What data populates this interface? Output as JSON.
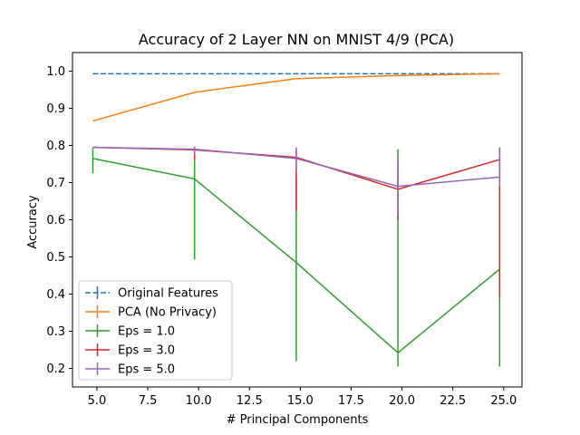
{
  "chart_data": {
    "type": "line",
    "title": "Accuracy of 2 Layer NN on MNIST 4/9 (PCA)",
    "xlabel": "# Principal Components",
    "ylabel": "Accuracy",
    "xlim": [
      3.8,
      25.9
    ],
    "ylim": [
      0.15,
      1.05
    ],
    "x": [
      4.8,
      9.8,
      14.8,
      19.8,
      24.8
    ],
    "x_ticks": [
      5.0,
      7.5,
      10.0,
      12.5,
      15.0,
      17.5,
      20.0,
      22.5,
      25.0
    ],
    "x_tick_labels": [
      "5.0",
      "7.5",
      "10.0",
      "12.5",
      "15.0",
      "17.5",
      "20.0",
      "22.5",
      "25.0"
    ],
    "y_ticks": [
      0.2,
      0.3,
      0.4,
      0.5,
      0.6,
      0.7,
      0.8,
      0.9,
      1.0
    ],
    "y_tick_labels": [
      "0.2",
      "0.3",
      "0.4",
      "0.5",
      "0.6",
      "0.7",
      "0.8",
      "0.9",
      "1.0"
    ],
    "grid": false,
    "legend_position": "lower-left",
    "series": [
      {
        "name": "Original Features",
        "color": "#1f77b4",
        "dashed": true,
        "values": [
          0.993,
          0.993,
          0.993,
          0.993,
          0.993
        ],
        "err_low": [
          0.993,
          0.993,
          0.993,
          0.993,
          0.993
        ],
        "err_high": [
          0.993,
          0.993,
          0.993,
          0.993,
          0.993
        ]
      },
      {
        "name": "PCA (No Privacy)",
        "color": "#ff7f0e",
        "dashed": false,
        "values": [
          0.866,
          0.943,
          0.98,
          0.988,
          0.993
        ],
        "err_low": [
          0.866,
          0.943,
          0.98,
          0.988,
          0.993
        ],
        "err_high": [
          0.866,
          0.943,
          0.98,
          0.988,
          0.993
        ]
      },
      {
        "name": "Eps = 1.0",
        "color": "#2ca02c",
        "dashed": false,
        "values": [
          0.765,
          0.71,
          0.485,
          0.242,
          0.467
        ],
        "err_low": [
          0.725,
          0.493,
          0.22,
          0.205,
          0.205
        ],
        "err_high": [
          0.795,
          0.765,
          0.72,
          0.79,
          0.795
        ]
      },
      {
        "name": "Eps = 3.0",
        "color": "#d62728",
        "dashed": false,
        "values": [
          0.795,
          0.788,
          0.768,
          0.682,
          0.762
        ],
        "err_low": [
          0.795,
          0.762,
          0.625,
          0.6,
          0.39
        ],
        "err_high": [
          0.795,
          0.795,
          0.79,
          0.748,
          0.795
        ]
      },
      {
        "name": "Eps = 5.0",
        "color": "#9467bd",
        "dashed": false,
        "values": [
          0.795,
          0.79,
          0.765,
          0.69,
          0.715
        ],
        "err_low": [
          0.795,
          0.776,
          0.73,
          0.61,
          0.69
        ],
        "err_high": [
          0.795,
          0.797,
          0.795,
          0.765,
          0.795
        ]
      }
    ]
  }
}
